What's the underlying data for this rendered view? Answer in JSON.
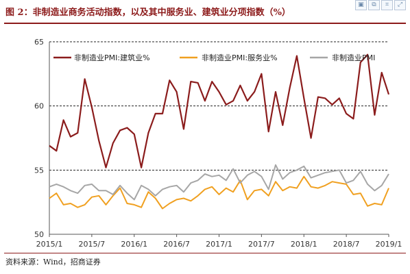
{
  "header": {
    "title": "图 2：非制造业商务活动指数，以及其中服务业、建筑业分项指数（%）"
  },
  "toolbar": {
    "icons": [
      "image-icon",
      "copy-icon",
      "crop-icon",
      "expand-icon"
    ]
  },
  "footer": {
    "source": "资料来源：Wind，招商证券"
  },
  "colors": {
    "title": "#8c1a1a",
    "construction": "#8b1c1c",
    "services": "#f0a020",
    "nonmanufacturing": "#a6a6a6"
  },
  "chart_data": {
    "type": "line",
    "ylim": [
      50,
      65
    ],
    "yticks": [
      50,
      55,
      60,
      65
    ],
    "gridlines_at": [
      55,
      60,
      65
    ],
    "xtick_labels": [
      "2015/1",
      "2015/7",
      "2016/1",
      "2016/7",
      "2017/1",
      "2017/7",
      "2018/1",
      "2018/7",
      "2019/1"
    ],
    "legend_position": "top",
    "series": [
      {
        "name": "非制造业PMI:建筑业%",
        "color": "#8b1c1c",
        "values": [
          56.9,
          56.5,
          58.9,
          57.6,
          57.9,
          62.1,
          59.9,
          57.3,
          55.2,
          57.1,
          58.1,
          58.3,
          57.8,
          55.2,
          57.9,
          59.4,
          59.4,
          62.0,
          61.1,
          58.2,
          61.9,
          61.8,
          60.4,
          61.9,
          61.1,
          60.1,
          60.4,
          61.6,
          60.4,
          61.1,
          62.5,
          58.0,
          61.1,
          58.5,
          61.4,
          63.9,
          60.6,
          57.5,
          60.7,
          60.6,
          60.1,
          60.6,
          59.4,
          59.0,
          63.4,
          64.0,
          59.3,
          62.6,
          60.9
        ]
      },
      {
        "name": "非制造业PMI:服务业%",
        "color": "#f0a020",
        "values": [
          52.8,
          53.2,
          52.3,
          52.4,
          52.1,
          52.3,
          52.9,
          53.0,
          52.3,
          53.0,
          53.6,
          52.4,
          52.3,
          52.1,
          53.3,
          52.8,
          52.0,
          52.4,
          52.7,
          52.8,
          52.6,
          53.0,
          53.5,
          53.7,
          53.1,
          53.6,
          53.3,
          54.2,
          52.7,
          53.4,
          53.5,
          53.0,
          54.1,
          53.4,
          53.7,
          53.6,
          54.5,
          53.7,
          53.6,
          53.8,
          54.1,
          54.0,
          53.9,
          53.1,
          53.2,
          52.2,
          52.4,
          52.3,
          53.6
        ]
      },
      {
        "name": "非制造业PMI",
        "color": "#a6a6a6",
        "values": [
          53.7,
          53.9,
          53.7,
          53.4,
          53.2,
          53.8,
          53.9,
          53.4,
          53.4,
          53.1,
          53.8,
          53.2,
          52.7,
          53.8,
          53.5,
          53.0,
          53.5,
          53.7,
          53.8,
          53.3,
          54.0,
          54.2,
          54.7,
          54.5,
          54.6,
          54.2,
          55.1,
          54.0,
          54.6,
          54.9,
          54.5,
          53.5,
          55.4,
          54.3,
          54.8,
          55.0,
          55.3,
          54.4,
          54.6,
          54.8,
          54.9,
          55.0,
          54.0,
          54.2,
          54.9,
          53.9,
          53.4,
          53.8,
          54.7
        ]
      }
    ]
  }
}
